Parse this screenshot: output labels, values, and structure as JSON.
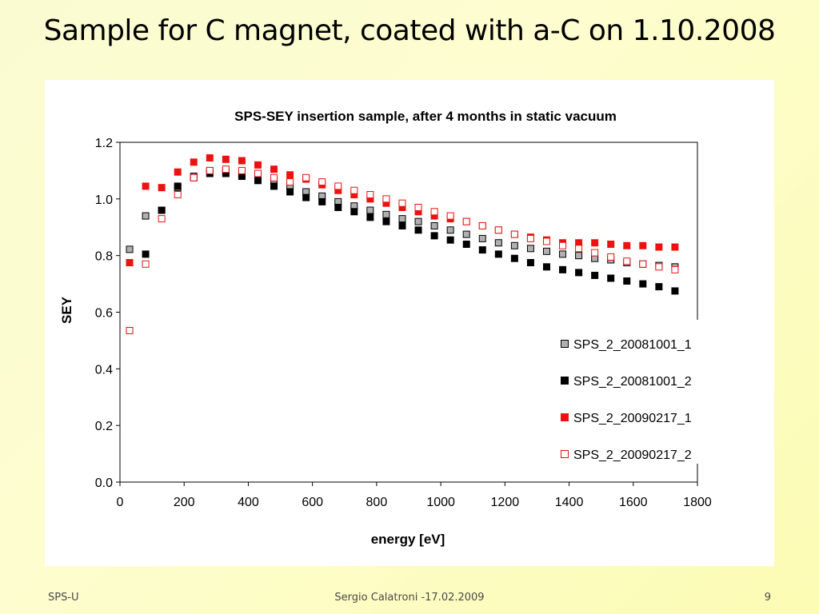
{
  "slide": {
    "title": "Sample for C magnet, coated with a-C on 1.10.2008",
    "footer_left": "SPS-U",
    "footer_center": "Sergio Calatroni -17.02.2009",
    "footer_right": "9"
  },
  "chart_data": {
    "type": "scatter",
    "title": "SPS-SEY insertion sample, after 4 months in static vacuum",
    "xlabel": "energy [eV]",
    "ylabel": "SEY",
    "xlim": [
      0,
      1800
    ],
    "ylim": [
      0,
      1.2
    ],
    "xticks": [
      "0",
      "200",
      "400",
      "600",
      "800",
      "1000",
      "1200",
      "1400",
      "1600",
      "1800"
    ],
    "yticks": [
      "0.0",
      "0.2",
      "0.4",
      "0.6",
      "0.8",
      "1.0",
      "1.2"
    ],
    "legend_position": "right",
    "x": [
      30,
      80,
      130,
      180,
      230,
      280,
      330,
      380,
      430,
      480,
      530,
      580,
      630,
      680,
      730,
      780,
      830,
      880,
      930,
      980,
      1030,
      1080,
      1130,
      1180,
      1230,
      1280,
      1330,
      1380,
      1430,
      1480,
      1530,
      1580,
      1630,
      1680,
      1730
    ],
    "series": [
      {
        "name": "SPS_2_20081001_1",
        "marker": "square-gray",
        "color": "#b0b0b0",
        "values": [
          0.822,
          0.94,
          0.96,
          1.04,
          1.08,
          1.1,
          1.1,
          1.09,
          1.08,
          1.06,
          1.045,
          1.025,
          1.01,
          0.99,
          0.975,
          0.96,
          0.945,
          0.93,
          0.92,
          0.905,
          0.89,
          0.875,
          0.86,
          0.845,
          0.835,
          0.825,
          0.815,
          0.805,
          0.8,
          0.79,
          0.785,
          0.775,
          0.77,
          0.765,
          0.76
        ]
      },
      {
        "name": "SPS_2_20081001_2",
        "marker": "square-black",
        "color": "#000000",
        "values": [
          0.535,
          0.805,
          0.96,
          1.045,
          1.075,
          1.09,
          1.09,
          1.08,
          1.065,
          1.045,
          1.025,
          1.005,
          0.99,
          0.97,
          0.955,
          0.935,
          0.92,
          0.905,
          0.89,
          0.87,
          0.855,
          0.84,
          0.82,
          0.805,
          0.79,
          0.775,
          0.76,
          0.75,
          0.74,
          0.73,
          0.72,
          0.71,
          0.7,
          0.69,
          0.675
        ]
      },
      {
        "name": "SPS_2_20090217_1",
        "marker": "square-red",
        "color": "#ee1111",
        "values": [
          0.775,
          1.045,
          1.04,
          1.095,
          1.13,
          1.145,
          1.14,
          1.135,
          1.12,
          1.105,
          1.085,
          1.07,
          1.05,
          1.03,
          1.015,
          1.0,
          0.985,
          0.97,
          0.955,
          0.94,
          0.93,
          0.92,
          0.905,
          0.89,
          0.875,
          0.865,
          0.855,
          0.845,
          0.845,
          0.845,
          0.84,
          0.835,
          0.835,
          0.83,
          0.83
        ]
      },
      {
        "name": "SPS_2_20090217_2",
        "marker": "square-hollow-red",
        "color": "#ee1111",
        "values": [
          0.535,
          0.77,
          0.93,
          1.015,
          1.075,
          1.1,
          1.105,
          1.1,
          1.09,
          1.075,
          1.06,
          1.075,
          1.06,
          1.045,
          1.03,
          1.015,
          1.0,
          0.985,
          0.97,
          0.955,
          0.94,
          0.92,
          0.905,
          0.89,
          0.875,
          0.86,
          0.85,
          0.835,
          0.825,
          0.81,
          0.795,
          0.78,
          0.77,
          0.76,
          0.75
        ]
      }
    ]
  }
}
